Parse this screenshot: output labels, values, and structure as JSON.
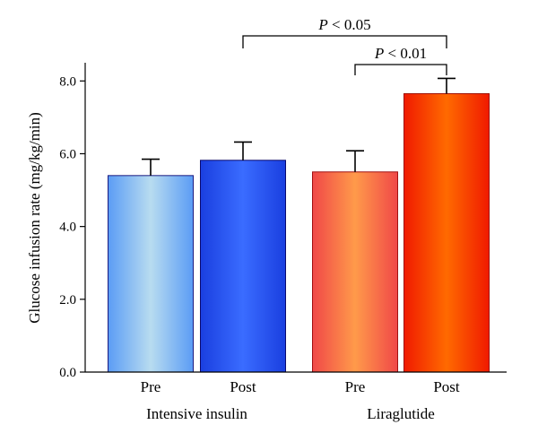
{
  "chart_data": {
    "type": "bar",
    "ylabel": "Glucose infusion rate (mg/kg/min)",
    "xlabel": "",
    "ylim": [
      0,
      8.5
    ],
    "yticks": [
      "0.0",
      "2.0",
      "4.0",
      "6.0",
      "8.0"
    ],
    "ytick_values": [
      0,
      2,
      4,
      6,
      8
    ],
    "grid": false,
    "groups": [
      {
        "name": "Intensive insulin",
        "bars": [
          {
            "label": "Pre",
            "value": 5.4,
            "error": 0.45,
            "colors": [
              "#5b9cf5",
              "#b8dcf0",
              "#5b9cf5"
            ],
            "stroke": "#1a1a80"
          },
          {
            "label": "Post",
            "value": 5.82,
            "error": 0.5,
            "colors": [
              "#1a3fe0",
              "#3a6cff",
              "#1a3fe0"
            ],
            "stroke": "#0a0a70"
          }
        ]
      },
      {
        "name": "Liraglutide",
        "bars": [
          {
            "label": "Pre",
            "value": 5.5,
            "error": 0.58,
            "colors": [
              "#f04848",
              "#ff9a4a",
              "#f04848"
            ],
            "stroke": "#a01010"
          },
          {
            "label": "Post",
            "value": 7.65,
            "error": 0.42,
            "colors": [
              "#f01a00",
              "#ff6a00",
              "#f01a00"
            ],
            "stroke": "#a01000"
          }
        ]
      }
    ],
    "annotations": [
      {
        "text": "P < 0.05",
        "from_bar": 1,
        "to_bar": 3,
        "level": 2
      },
      {
        "text": "P < 0.01",
        "from_bar": 2,
        "to_bar": 3,
        "level": 1
      }
    ]
  }
}
